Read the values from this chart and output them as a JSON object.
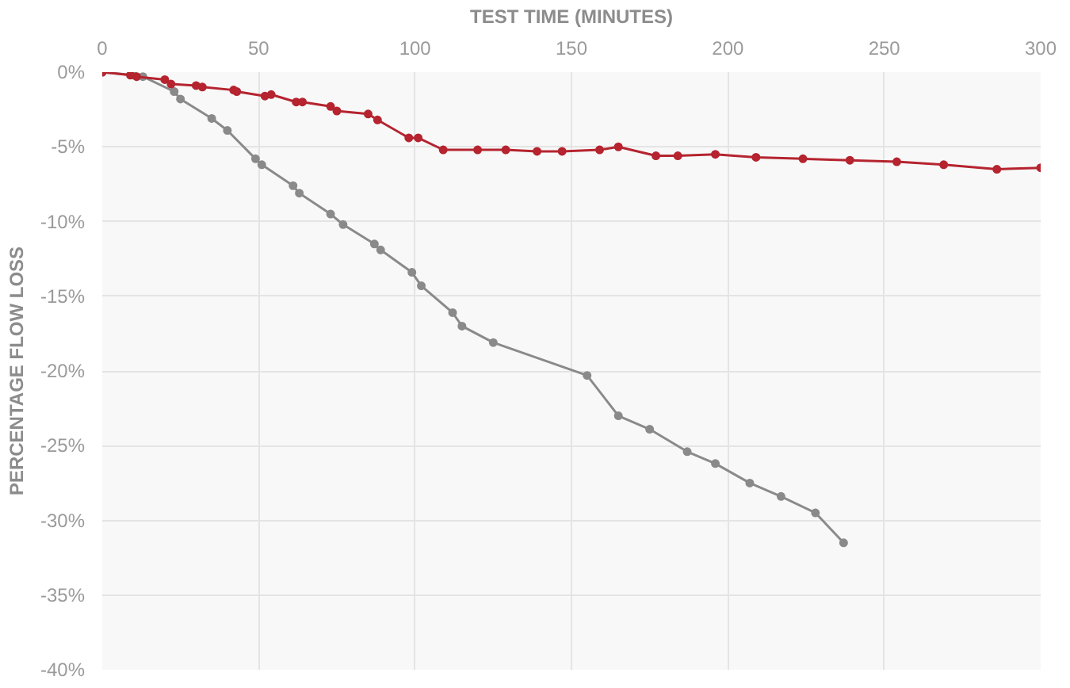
{
  "chart_data": {
    "type": "line",
    "xlabel": "TEST TIME (MINUTES)",
    "ylabel": "PERCENTAGE FLOW LOSS",
    "xlim": [
      0,
      300
    ],
    "xticks": [
      0,
      50,
      100,
      150,
      200,
      250,
      300
    ],
    "ylim": [
      -40,
      0
    ],
    "yticks": [
      {
        "value": 0,
        "label": "0%"
      },
      {
        "value": -5,
        "label": "-5%"
      },
      {
        "value": -10,
        "label": "-10%"
      },
      {
        "value": -15,
        "label": "-15%"
      },
      {
        "value": -20,
        "label": "-20%"
      },
      {
        "value": -25,
        "label": "-25%"
      },
      {
        "value": -30,
        "label": "-30%"
      },
      {
        "value": -35,
        "label": "-35%"
      },
      {
        "value": -40,
        "label": "-40%"
      }
    ],
    "grid": true,
    "marker": "circle",
    "line_style": "solid",
    "series": [
      {
        "color": "#b5242f",
        "x": [
          0,
          9,
          11,
          20,
          22,
          30,
          32,
          42,
          43,
          52,
          54,
          62,
          64,
          73,
          75,
          85,
          88,
          98,
          101,
          109,
          120,
          129,
          139,
          147,
          159,
          165,
          177,
          184,
          196,
          209,
          224,
          239,
          254,
          269,
          286,
          300
        ],
        "values": [
          0,
          -0.2,
          -0.3,
          -0.5,
          -0.8,
          -0.9,
          -1.0,
          -1.2,
          -1.3,
          -1.6,
          -1.5,
          -2.0,
          -2.0,
          -2.3,
          -2.6,
          -2.8,
          -3.2,
          -4.4,
          -4.4,
          -5.2,
          -5.2,
          -5.2,
          -5.3,
          -5.3,
          -5.2,
          -5.0,
          -5.6,
          -5.6,
          -5.5,
          -5.7,
          -5.8,
          -5.9,
          -6.0,
          -6.2,
          -6.5,
          -6.4
        ]
      },
      {
        "color": "#8a8a8a",
        "x": [
          0,
          10,
          13,
          23,
          25,
          35,
          40,
          49,
          51,
          61,
          63,
          73,
          77,
          87,
          89,
          99,
          102,
          112,
          115,
          125,
          155,
          165,
          175,
          187,
          196,
          207,
          217,
          228,
          237
        ],
        "values": [
          0,
          -0.2,
          -0.3,
          -1.3,
          -1.8,
          -3.1,
          -3.9,
          -5.8,
          -6.2,
          -7.6,
          -8.1,
          -9.5,
          -10.2,
          -11.5,
          -11.9,
          -13.4,
          -14.3,
          -16.1,
          -17.0,
          -18.1,
          -20.3,
          -23.0,
          -23.9,
          -25.4,
          -26.2,
          -27.5,
          -28.4,
          -29.5,
          -31.5
        ]
      }
    ]
  }
}
